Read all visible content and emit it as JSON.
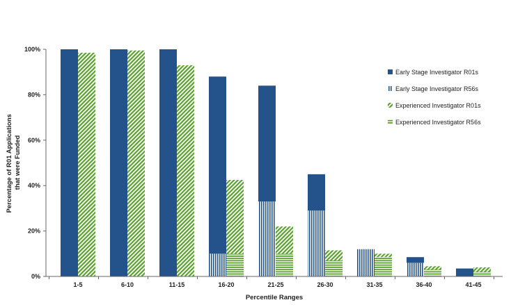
{
  "chart_data": {
    "type": "bar",
    "title": "",
    "xlabel": "Percentile Ranges",
    "ylabel_lines": [
      "Percentage of R01 Applications",
      "that were Funded"
    ],
    "categories": [
      "1-5",
      "6-10",
      "11-15",
      "16-20",
      "21-25",
      "26-30",
      "31-35",
      "36-40",
      "41-45"
    ],
    "ylim": [
      0,
      100
    ],
    "yticks": [
      "0%",
      "20%",
      "40%",
      "60%",
      "80%",
      "100%"
    ],
    "ytick_values": [
      0,
      20,
      40,
      60,
      80,
      100
    ],
    "legend_position": "right",
    "grid": false,
    "groups": [
      {
        "name": "Early Stage Investigator",
        "stack": [
          {
            "series": "Early Stage Investigator R56s",
            "values": [
              0,
              0,
              0,
              10,
              33,
              29,
              12,
              6,
              0
            ]
          },
          {
            "series": "Early Stage Investigator R01s",
            "values": [
              100,
              100,
              100,
              78,
              51,
              16,
              0,
              2.5,
              3.5
            ]
          }
        ]
      },
      {
        "name": "Experienced Investigator",
        "stack": [
          {
            "series": "Experienced Investigator R56s",
            "values": [
              0,
              0,
              0,
              10,
              10,
              7,
              8.5,
              3,
              2
            ]
          },
          {
            "series": "Experienced Investigator R01s",
            "values": [
              98.5,
              99.5,
              93,
              32.5,
              12,
              4.5,
              1.5,
              1.5,
              2
            ]
          }
        ]
      }
    ],
    "legend": [
      {
        "label": "Early Stage Investigator R01s",
        "pattern": "solid",
        "color": "#24528a"
      },
      {
        "label": "Early Stage Investigator R56s",
        "pattern": "vstripe",
        "color": "#24528a"
      },
      {
        "label": "Experienced Investigator R01s",
        "pattern": "diag",
        "color": "#5aa02c"
      },
      {
        "label": "Experienced Investigator R56s",
        "pattern": "hstripe",
        "color": "#5aa02c"
      }
    ],
    "colors": {
      "esi": "#24528a",
      "exp": "#5aa02c"
    }
  }
}
